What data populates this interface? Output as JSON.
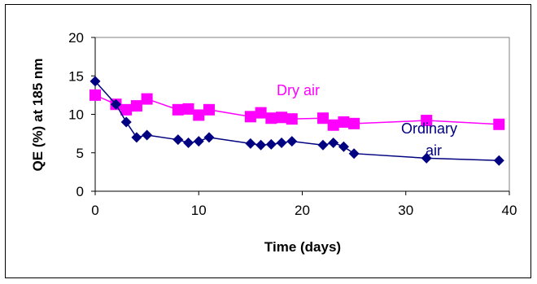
{
  "chart_data": {
    "type": "line",
    "xlabel": "Time (days)",
    "ylabel": "QE (%) at 185 nm",
    "xlim": [
      0,
      40
    ],
    "ylim": [
      0,
      20
    ],
    "x_ticks": [
      "0",
      "10",
      "20",
      "30",
      "40"
    ],
    "y_ticks": [
      "0",
      "5",
      "10",
      "15",
      "20"
    ],
    "grid": false,
    "legend": "none",
    "series": [
      {
        "name": "Dry air",
        "color": "#ff00ff",
        "marker": "square",
        "x": [
          0,
          2,
          3,
          4,
          5,
          8,
          9,
          10,
          11,
          15,
          16,
          17,
          18,
          19,
          22,
          23,
          24,
          25,
          32,
          39
        ],
        "y": [
          12.5,
          11.3,
          10.6,
          11.1,
          12.0,
          10.6,
          10.7,
          9.9,
          10.6,
          9.7,
          10.2,
          9.5,
          9.6,
          9.4,
          9.5,
          8.6,
          9.0,
          8.8,
          9.2,
          8.7
        ]
      },
      {
        "name": "Ordinary air",
        "color": "#000080",
        "marker": "diamond",
        "x": [
          0,
          2,
          3,
          4,
          5,
          8,
          9,
          10,
          11,
          15,
          16,
          17,
          18,
          19,
          22,
          23,
          24,
          25,
          32,
          39
        ],
        "y": [
          14.3,
          11.3,
          9.0,
          7.0,
          7.3,
          6.7,
          6.3,
          6.5,
          7.0,
          6.2,
          6.0,
          6.1,
          6.3,
          6.5,
          6.0,
          6.3,
          5.8,
          4.9,
          4.3,
          4.0
        ]
      }
    ],
    "annotations": [
      {
        "text": "Dry air",
        "color": "#ff00ff"
      },
      {
        "text": "Ordinary",
        "color": "#000080"
      },
      {
        "text": "air",
        "color": "#000080"
      }
    ]
  }
}
